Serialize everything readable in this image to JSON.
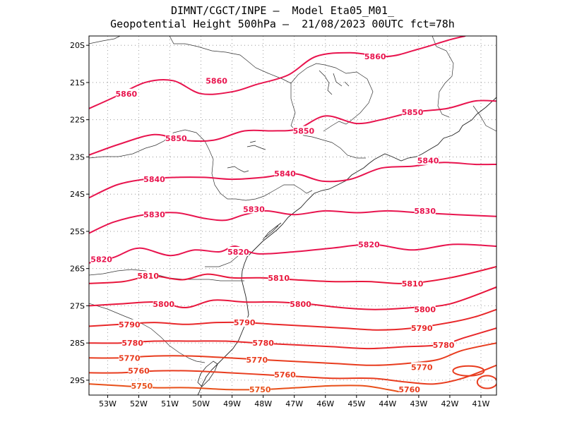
{
  "title": {
    "line1": "DIMNT/CGCT/INPE –  Model Eta05_M01_",
    "line2": "Geopotential Height 500hPa –  21/08/2023 00UTC fct=78h"
  },
  "map": {
    "lon_range": [
      -53.6,
      -40.5
    ],
    "lat_range": [
      -29.4,
      -19.75
    ],
    "y_ticks": [
      {
        "lat": -20,
        "label": "20S"
      },
      {
        "lat": -21,
        "label": "21S"
      },
      {
        "lat": -22,
        "label": "22S"
      },
      {
        "lat": -23,
        "label": "23S"
      },
      {
        "lat": -24,
        "label": "24S"
      },
      {
        "lat": -25,
        "label": "25S"
      },
      {
        "lat": -26,
        "label": "26S"
      },
      {
        "lat": -27,
        "label": "27S"
      },
      {
        "lat": -28,
        "label": "28S"
      },
      {
        "lat": -29,
        "label": "29S"
      }
    ],
    "x_ticks": [
      {
        "lon": -53,
        "label": "53W"
      },
      {
        "lon": -52,
        "label": "52W"
      },
      {
        "lon": -51,
        "label": "51W"
      },
      {
        "lon": -50,
        "label": "50W"
      },
      {
        "lon": -49,
        "label": "49W"
      },
      {
        "lon": -48,
        "label": "48W"
      },
      {
        "lon": -47,
        "label": "47W"
      },
      {
        "lon": -46,
        "label": "46W"
      },
      {
        "lon": -45,
        "label": "45W"
      },
      {
        "lon": -44,
        "label": "44W"
      },
      {
        "lon": -43,
        "label": "43W"
      },
      {
        "lon": -42,
        "label": "42W"
      },
      {
        "lon": -41,
        "label": "41W"
      }
    ]
  },
  "contours": [
    {
      "value": 5860,
      "label": "5860",
      "color": "#e8144e",
      "pts": [
        [
          -53.6,
          -21.7
        ],
        [
          -52.8,
          -21.4
        ],
        [
          -51.8,
          -21.0
        ],
        [
          -50.9,
          -20.95
        ],
        [
          -50.0,
          -21.3
        ],
        [
          -49.0,
          -21.25
        ],
        [
          -48.2,
          -21.05
        ],
        [
          -47.2,
          -20.8
        ],
        [
          -46.3,
          -20.3
        ],
        [
          -45.2,
          -20.2
        ],
        [
          -44.0,
          -20.3
        ],
        [
          -43.0,
          -20.1
        ],
        [
          -42.0,
          -19.85
        ],
        [
          -41.5,
          -19.75
        ]
      ],
      "labels": [
        {
          "lon": -52.4,
          "lat": -21.3
        },
        {
          "lon": -49.5,
          "lat": -20.95
        },
        {
          "lon": -44.4,
          "lat": -20.3
        }
      ]
    },
    {
      "value": 5850,
      "label": "5850",
      "color": "#e8144e",
      "pts": [
        [
          -53.6,
          -22.95
        ],
        [
          -52.6,
          -22.65
        ],
        [
          -51.5,
          -22.4
        ],
        [
          -50.6,
          -22.55
        ],
        [
          -49.6,
          -22.55
        ],
        [
          -48.6,
          -22.3
        ],
        [
          -47.7,
          -22.3
        ],
        [
          -46.9,
          -22.25
        ],
        [
          -46.0,
          -21.9
        ],
        [
          -45.0,
          -22.1
        ],
        [
          -44.2,
          -22.0
        ],
        [
          -43.2,
          -21.8
        ],
        [
          -42.1,
          -21.7
        ],
        [
          -41.2,
          -21.5
        ],
        [
          -40.5,
          -21.5
        ]
      ],
      "labels": [
        {
          "lon": -50.8,
          "lat": -22.5
        },
        {
          "lon": -46.7,
          "lat": -22.3
        },
        {
          "lon": -43.2,
          "lat": -21.8
        }
      ]
    },
    {
      "value": 5840,
      "label": "5840",
      "color": "#e8144e",
      "pts": [
        [
          -53.6,
          -24.1
        ],
        [
          -52.7,
          -23.75
        ],
        [
          -51.8,
          -23.6
        ],
        [
          -50.8,
          -23.55
        ],
        [
          -49.9,
          -23.55
        ],
        [
          -49.0,
          -23.6
        ],
        [
          -48.0,
          -23.55
        ],
        [
          -47.0,
          -23.45
        ],
        [
          -46.1,
          -23.65
        ],
        [
          -45.2,
          -23.6
        ],
        [
          -44.2,
          -23.3
        ],
        [
          -43.2,
          -23.25
        ],
        [
          -42.2,
          -23.15
        ],
        [
          -41.2,
          -23.2
        ],
        [
          -40.5,
          -23.2
        ]
      ],
      "labels": [
        {
          "lon": -51.5,
          "lat": -23.6
        },
        {
          "lon": -47.3,
          "lat": -23.45
        },
        {
          "lon": -42.7,
          "lat": -23.1
        }
      ]
    },
    {
      "value": 5830,
      "label": "5830",
      "color": "#e8144e",
      "pts": [
        [
          -53.6,
          -25.05
        ],
        [
          -52.8,
          -24.75
        ],
        [
          -51.8,
          -24.55
        ],
        [
          -50.8,
          -24.5
        ],
        [
          -49.9,
          -24.65
        ],
        [
          -49.2,
          -24.7
        ],
        [
          -48.6,
          -24.55
        ],
        [
          -47.9,
          -24.45
        ],
        [
          -47.0,
          -24.55
        ],
        [
          -46.0,
          -24.45
        ],
        [
          -45.0,
          -24.5
        ],
        [
          -44.0,
          -24.45
        ],
        [
          -43.0,
          -24.5
        ],
        [
          -41.8,
          -24.55
        ],
        [
          -40.5,
          -24.6
        ]
      ],
      "labels": [
        {
          "lon": -51.5,
          "lat": -24.55
        },
        {
          "lon": -48.3,
          "lat": -24.4
        },
        {
          "lon": -42.8,
          "lat": -24.45
        }
      ]
    },
    {
      "value": 5820,
      "label": "5820",
      "color": "#e8144e",
      "pts": [
        [
          -53.6,
          -25.85
        ],
        [
          -52.8,
          -25.7
        ],
        [
          -52.0,
          -25.45
        ],
        [
          -51.0,
          -25.65
        ],
        [
          -50.2,
          -25.5
        ],
        [
          -49.4,
          -25.55
        ],
        [
          -48.9,
          -25.4
        ],
        [
          -48.2,
          -25.6
        ],
        [
          -47.0,
          -25.55
        ],
        [
          -45.8,
          -25.45
        ],
        [
          -44.5,
          -25.35
        ],
        [
          -43.2,
          -25.5
        ],
        [
          -41.9,
          -25.35
        ],
        [
          -40.5,
          -25.4
        ]
      ],
      "labels": [
        {
          "lon": -53.2,
          "lat": -25.75
        },
        {
          "lon": -48.8,
          "lat": -25.55
        },
        {
          "lon": -44.6,
          "lat": -25.35
        }
      ]
    },
    {
      "value": 5810,
      "label": "5810",
      "color": "#e8163c",
      "pts": [
        [
          -53.6,
          -26.4
        ],
        [
          -52.5,
          -26.35
        ],
        [
          -51.6,
          -26.2
        ],
        [
          -50.6,
          -26.3
        ],
        [
          -49.8,
          -26.15
        ],
        [
          -49.0,
          -26.25
        ],
        [
          -48.1,
          -26.25
        ],
        [
          -47.0,
          -26.3
        ],
        [
          -45.8,
          -26.35
        ],
        [
          -44.6,
          -26.35
        ],
        [
          -43.4,
          -26.4
        ],
        [
          -42.0,
          -26.25
        ],
        [
          -40.5,
          -25.95
        ]
      ],
      "labels": [
        {
          "lon": -51.7,
          "lat": -26.2
        },
        {
          "lon": -47.5,
          "lat": -26.25
        },
        {
          "lon": -43.2,
          "lat": -26.4
        }
      ]
    },
    {
      "value": 5800,
      "label": "5800",
      "color": "#e8163c",
      "pts": [
        [
          -53.6,
          -27.0
        ],
        [
          -52.6,
          -26.95
        ],
        [
          -51.4,
          -26.9
        ],
        [
          -50.5,
          -27.05
        ],
        [
          -49.6,
          -26.85
        ],
        [
          -48.6,
          -26.9
        ],
        [
          -47.6,
          -26.9
        ],
        [
          -46.6,
          -26.95
        ],
        [
          -45.5,
          -27.05
        ],
        [
          -44.4,
          -27.1
        ],
        [
          -43.2,
          -27.05
        ],
        [
          -42.0,
          -26.95
        ],
        [
          -40.5,
          -26.5
        ]
      ],
      "labels": [
        {
          "lon": -51.2,
          "lat": -26.95
        },
        {
          "lon": -46.8,
          "lat": -26.95
        },
        {
          "lon": -42.8,
          "lat": -27.1
        }
      ]
    },
    {
      "value": 5790,
      "label": "5790",
      "color": "#e8282a",
      "pts": [
        [
          -53.6,
          -27.55
        ],
        [
          -52.6,
          -27.5
        ],
        [
          -51.5,
          -27.45
        ],
        [
          -50.5,
          -27.5
        ],
        [
          -49.5,
          -27.45
        ],
        [
          -48.6,
          -27.45
        ],
        [
          -47.6,
          -27.5
        ],
        [
          -46.5,
          -27.55
        ],
        [
          -45.4,
          -27.6
        ],
        [
          -44.3,
          -27.65
        ],
        [
          -43.2,
          -27.6
        ],
        [
          -42.0,
          -27.45
        ],
        [
          -41.2,
          -27.3
        ],
        [
          -40.5,
          -27.1
        ]
      ],
      "labels": [
        {
          "lon": -52.3,
          "lat": -27.5
        },
        {
          "lon": -48.6,
          "lat": -27.45
        },
        {
          "lon": -42.9,
          "lat": -27.6
        }
      ]
    },
    {
      "value": 5780,
      "label": "5780",
      "color": "#e8282a",
      "pts": [
        [
          -53.6,
          -28.0
        ],
        [
          -52.6,
          -28.0
        ],
        [
          -51.5,
          -27.95
        ],
        [
          -50.3,
          -27.95
        ],
        [
          -49.2,
          -27.95
        ],
        [
          -48.2,
          -28.0
        ],
        [
          -47.0,
          -28.05
        ],
        [
          -45.8,
          -28.1
        ],
        [
          -44.6,
          -28.15
        ],
        [
          -43.4,
          -28.1
        ],
        [
          -42.3,
          -28.05
        ],
        [
          -41.5,
          -27.85
        ],
        [
          -40.5,
          -27.6
        ]
      ],
      "labels": [
        {
          "lon": -52.2,
          "lat": -28.0
        },
        {
          "lon": -48.0,
          "lat": -28.0
        },
        {
          "lon": -42.2,
          "lat": -28.05
        }
      ]
    },
    {
      "value": 5770,
      "label": "5770",
      "color": "#e83c1e",
      "pts": [
        [
          -53.6,
          -28.4
        ],
        [
          -52.6,
          -28.4
        ],
        [
          -51.5,
          -28.35
        ],
        [
          -50.3,
          -28.35
        ],
        [
          -49.1,
          -28.4
        ],
        [
          -48.0,
          -28.45
        ],
        [
          -46.9,
          -28.5
        ],
        [
          -45.7,
          -28.55
        ],
        [
          -44.5,
          -28.6
        ],
        [
          -43.4,
          -28.55
        ],
        [
          -42.4,
          -28.45
        ],
        [
          -41.6,
          -28.2
        ],
        [
          -40.5,
          -28.0
        ]
      ],
      "labels": [
        {
          "lon": -52.3,
          "lat": -28.4
        },
        {
          "lon": -48.2,
          "lat": -28.45
        },
        {
          "lon": -42.9,
          "lat": -28.65
        }
      ]
    },
    {
      "value": 5760,
      "label": "5760",
      "color": "#e83c1e",
      "pts": [
        [
          -53.6,
          -28.8
        ],
        [
          -52.6,
          -28.8
        ],
        [
          -51.5,
          -28.75
        ],
        [
          -50.3,
          -28.75
        ],
        [
          -49.1,
          -28.8
        ],
        [
          -48.0,
          -28.85
        ],
        [
          -46.9,
          -28.9
        ],
        [
          -45.7,
          -28.95
        ],
        [
          -44.5,
          -28.95
        ],
        [
          -43.4,
          -29.05
        ],
        [
          -42.5,
          -29.1
        ],
        [
          -41.6,
          -28.95
        ],
        [
          -40.5,
          -28.6
        ]
      ],
      "labels": [
        {
          "lon": -52.0,
          "lat": -28.75
        },
        {
          "lon": -47.3,
          "lat": -28.85
        },
        {
          "lon": -43.3,
          "lat": -29.25
        }
      ]
    },
    {
      "value": 5750,
      "label": "5750",
      "color": "#e8501a",
      "pts": [
        [
          -53.6,
          -29.1
        ],
        [
          -52.6,
          -29.15
        ],
        [
          -51.5,
          -29.2
        ],
        [
          -50.4,
          -29.2
        ],
        [
          -49.2,
          -29.25
        ],
        [
          -48.0,
          -29.25
        ],
        [
          -46.9,
          -29.2
        ],
        [
          -45.8,
          -29.15
        ],
        [
          -44.8,
          -29.15
        ],
        [
          -44.0,
          -29.25
        ],
        [
          -43.4,
          -29.35
        ]
      ],
      "labels": [
        {
          "lon": -51.9,
          "lat": -29.15
        },
        {
          "lon": -48.1,
          "lat": -29.25
        }
      ]
    }
  ]
}
